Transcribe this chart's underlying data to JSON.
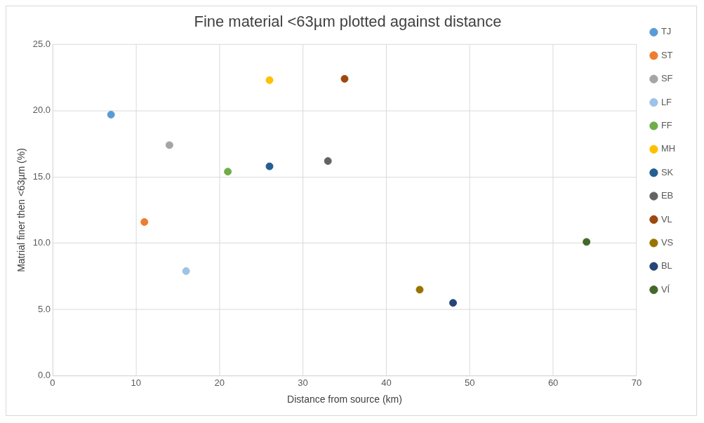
{
  "chart_data": {
    "type": "scatter",
    "title": "Fine material <63µm plotted against distance",
    "xlabel": "Distance from source (km)",
    "ylabel": "Matrial finer then <63µm (%)",
    "xlim": [
      0,
      70
    ],
    "xticks": [
      0,
      10,
      20,
      30,
      40,
      50,
      60,
      70
    ],
    "ylim": [
      0,
      25
    ],
    "yticks": [
      {
        "value": 0,
        "label": "0.0"
      },
      {
        "value": 5,
        "label": "5.0"
      },
      {
        "value": 10,
        "label": "10.0"
      },
      {
        "value": 15,
        "label": "15.0"
      },
      {
        "value": 20,
        "label": "20.0"
      },
      {
        "value": 25,
        "label": "25.0"
      }
    ],
    "grid": true,
    "legend": "right",
    "marker": "circle",
    "series": [
      {
        "name": "TJ",
        "color": "#5b9bd5",
        "x": [
          7
        ],
        "values": [
          19.7
        ]
      },
      {
        "name": "ST",
        "color": "#ed7d31",
        "x": [
          11
        ],
        "values": [
          11.6
        ]
      },
      {
        "name": "SF",
        "color": "#a5a5a5",
        "x": [
          14
        ],
        "values": [
          17.4
        ]
      },
      {
        "name": "LF",
        "color": "#9dc3e6",
        "x": [
          16
        ],
        "values": [
          7.9
        ]
      },
      {
        "name": "FF",
        "color": "#70ad47",
        "x": [
          21
        ],
        "values": [
          15.4
        ]
      },
      {
        "name": "MH",
        "color": "#ffc000",
        "x": [
          26
        ],
        "values": [
          22.3
        ]
      },
      {
        "name": "SK",
        "color": "#255e91",
        "x": [
          26
        ],
        "values": [
          15.8
        ]
      },
      {
        "name": "EB",
        "color": "#636363",
        "x": [
          33
        ],
        "values": [
          16.2
        ]
      },
      {
        "name": "VL",
        "color": "#9e480e",
        "x": [
          35
        ],
        "values": [
          22.4
        ]
      },
      {
        "name": "VS",
        "color": "#997300",
        "x": [
          44
        ],
        "values": [
          6.5
        ]
      },
      {
        "name": "BL",
        "color": "#264478",
        "x": [
          48
        ],
        "values": [
          5.5
        ]
      },
      {
        "name": "VÍ",
        "color": "#43682b",
        "x": [
          64
        ],
        "values": [
          10.1
        ]
      }
    ]
  }
}
